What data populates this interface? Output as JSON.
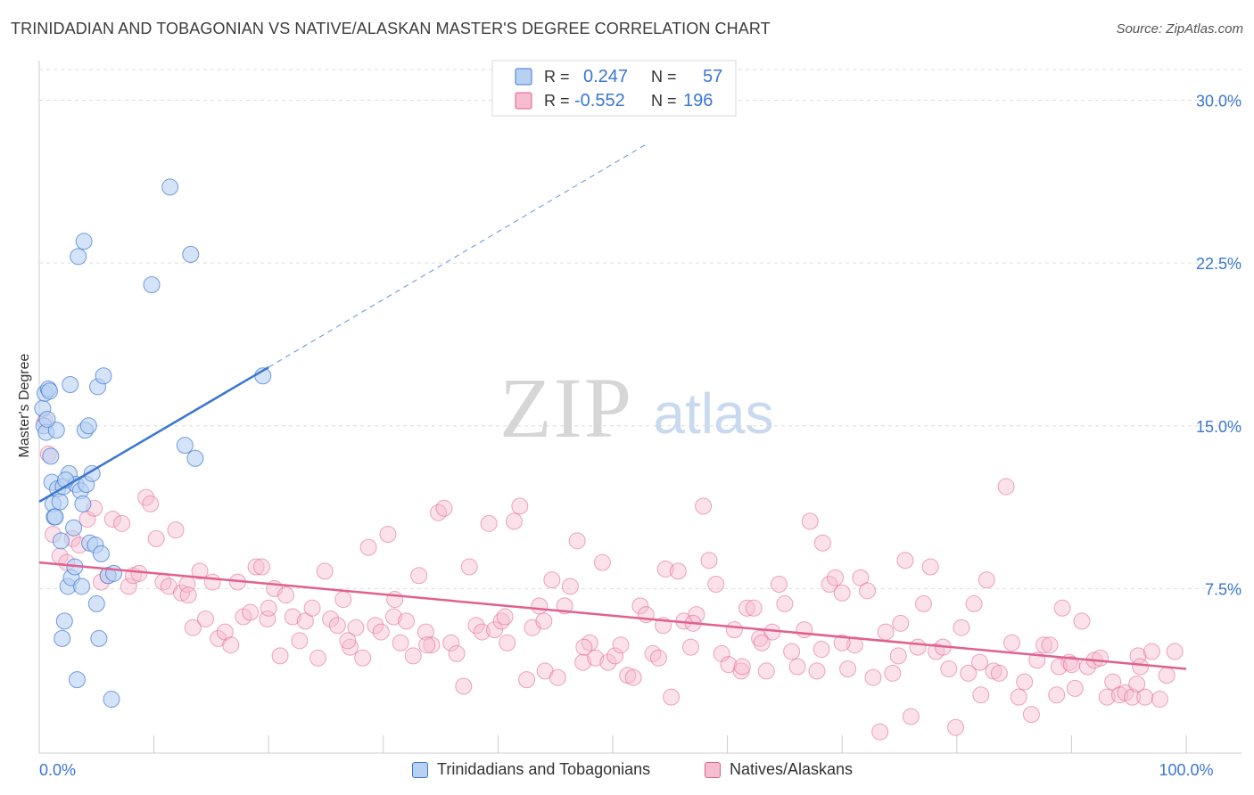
{
  "title": "TRINIDADIAN AND TOBAGONIAN VS NATIVE/ALASKAN MASTER'S DEGREE CORRELATION CHART",
  "source": "Source: ZipAtlas.com",
  "watermark": {
    "zip": "ZIP",
    "atlas": "atlas"
  },
  "colors": {
    "blue": "#3a76d0",
    "blue_fill": "#b8d1f3",
    "pink": "#e0608f",
    "pink_fill": "#f6bccf",
    "tick_label": "#3a76d0",
    "grid": "#dddddd"
  },
  "legend_top": {
    "rows": [
      {
        "r_label": "R =",
        "r_value": "0.247",
        "n_label": "N =",
        "n_value": "57"
      },
      {
        "r_label": "R =",
        "r_value": "-0.552",
        "n_label": "N =",
        "n_value": "196"
      }
    ]
  },
  "legend_bottom": {
    "items": [
      "Trinidadians and Tobagonians",
      "Natives/Alaskans"
    ]
  },
  "chart_data": {
    "type": "scatter",
    "xlabel": "",
    "ylabel": "Master's Degree",
    "xlim": [
      0,
      100
    ],
    "ylim": [
      0,
      30
    ],
    "x_tick_labels": [
      {
        "value": 0,
        "label": "0.0%"
      },
      {
        "value": 100,
        "label": "100.0%"
      }
    ],
    "y_tick_labels": [
      {
        "value": 7.5,
        "label": "7.5%"
      },
      {
        "value": 15,
        "label": "15.0%"
      },
      {
        "value": 22.5,
        "label": "22.5%"
      },
      {
        "value": 30,
        "label": "30.0%"
      }
    ],
    "grid": true,
    "legend": "top-center",
    "series": [
      {
        "name": "Trinidadians and Tobagonians",
        "color": "#3a76d0",
        "trend": {
          "x": [
            0,
            20
          ],
          "y": [
            11.5,
            17.7
          ],
          "dashed_to": [
            53,
            28
          ]
        },
        "points": [
          [
            0.3,
            15.8
          ],
          [
            0.4,
            15.0
          ],
          [
            0.5,
            16.5
          ],
          [
            0.6,
            14.7
          ],
          [
            0.8,
            16.7
          ],
          [
            0.9,
            16.6
          ],
          [
            1.0,
            13.6
          ],
          [
            1.1,
            12.4
          ],
          [
            1.2,
            11.4
          ],
          [
            1.3,
            10.8
          ],
          [
            1.4,
            10.8
          ],
          [
            1.6,
            12.1
          ],
          [
            1.8,
            11.5
          ],
          [
            1.9,
            9.7
          ],
          [
            2.1,
            12.2
          ],
          [
            2.2,
            6.0
          ],
          [
            2.0,
            5.2
          ],
          [
            2.5,
            7.6
          ],
          [
            2.6,
            12.8
          ],
          [
            2.7,
            16.9
          ],
          [
            2.8,
            8.0
          ],
          [
            3.0,
            10.3
          ],
          [
            3.1,
            8.5
          ],
          [
            3.2,
            12.3
          ],
          [
            3.3,
            3.3
          ],
          [
            3.4,
            22.8
          ],
          [
            3.6,
            12.0
          ],
          [
            3.7,
            7.6
          ],
          [
            3.8,
            11.4
          ],
          [
            3.9,
            23.5
          ],
          [
            4.0,
            14.8
          ],
          [
            4.1,
            12.3
          ],
          [
            4.3,
            15.0
          ],
          [
            4.4,
            9.6
          ],
          [
            4.6,
            12.8
          ],
          [
            4.9,
            9.5
          ],
          [
            5.0,
            6.8
          ],
          [
            5.1,
            16.8
          ],
          [
            5.2,
            5.2
          ],
          [
            5.4,
            9.1
          ],
          [
            5.6,
            17.3
          ],
          [
            6.0,
            8.1
          ],
          [
            6.3,
            2.4
          ],
          [
            6.5,
            8.2
          ],
          [
            9.8,
            21.5
          ],
          [
            11.4,
            26.0
          ],
          [
            12.7,
            14.1
          ],
          [
            13.2,
            22.9
          ],
          [
            13.6,
            13.5
          ],
          [
            19.5,
            17.3
          ],
          [
            1.5,
            14.8
          ],
          [
            2.3,
            12.5
          ],
          [
            0.7,
            15.3
          ]
        ]
      },
      {
        "name": "Natives/Alaskans",
        "color": "#e0608f",
        "trend": {
          "x": [
            0,
            100
          ],
          "y": [
            8.7,
            3.8
          ]
        },
        "points": [
          [
            0.5,
            15.2
          ],
          [
            0.8,
            13.7
          ],
          [
            1.2,
            10.0
          ],
          [
            1.8,
            9.0
          ],
          [
            2.4,
            8.7
          ],
          [
            2.9,
            9.8
          ],
          [
            3.5,
            9.5
          ],
          [
            4.2,
            10.7
          ],
          [
            4.8,
            11.2
          ],
          [
            5.4,
            7.8
          ],
          [
            6.0,
            8.1
          ],
          [
            6.4,
            10.7
          ],
          [
            7.2,
            10.5
          ],
          [
            7.8,
            7.6
          ],
          [
            8.2,
            8.1
          ],
          [
            8.7,
            8.2
          ],
          [
            9.3,
            11.7
          ],
          [
            9.7,
            11.4
          ],
          [
            10.2,
            9.8
          ],
          [
            10.8,
            7.8
          ],
          [
            11.3,
            7.6
          ],
          [
            11.9,
            10.2
          ],
          [
            12.4,
            7.3
          ],
          [
            12.9,
            7.7
          ],
          [
            13.4,
            5.7
          ],
          [
            14.0,
            8.3
          ],
          [
            14.5,
            6.1
          ],
          [
            15.1,
            7.8
          ],
          [
            15.6,
            5.2
          ],
          [
            16.2,
            5.5
          ],
          [
            16.7,
            4.9
          ],
          [
            17.3,
            7.8
          ],
          [
            17.8,
            6.2
          ],
          [
            18.4,
            6.4
          ],
          [
            18.9,
            8.5
          ],
          [
            19.4,
            8.5
          ],
          [
            19.9,
            6.1
          ],
          [
            20.5,
            7.5
          ],
          [
            21.0,
            4.4
          ],
          [
            21.5,
            7.2
          ],
          [
            22.1,
            6.2
          ],
          [
            22.7,
            5.1
          ],
          [
            23.2,
            6.0
          ],
          [
            23.8,
            6.6
          ],
          [
            24.3,
            4.3
          ],
          [
            24.9,
            8.3
          ],
          [
            25.4,
            6.1
          ],
          [
            26.0,
            5.8
          ],
          [
            26.5,
            7.0
          ],
          [
            27.1,
            4.8
          ],
          [
            27.6,
            5.7
          ],
          [
            28.2,
            4.3
          ],
          [
            28.7,
            9.4
          ],
          [
            29.3,
            5.8
          ],
          [
            29.8,
            5.5
          ],
          [
            30.4,
            10.0
          ],
          [
            30.9,
            6.2
          ],
          [
            31.5,
            5.0
          ],
          [
            32.0,
            6.0
          ],
          [
            32.6,
            4.4
          ],
          [
            33.1,
            8.1
          ],
          [
            33.7,
            5.5
          ],
          [
            34.2,
            4.9
          ],
          [
            34.8,
            11.0
          ],
          [
            35.3,
            11.2
          ],
          [
            35.9,
            5.0
          ],
          [
            36.4,
            4.5
          ],
          [
            37.0,
            3.0
          ],
          [
            37.5,
            8.5
          ],
          [
            38.1,
            5.8
          ],
          [
            38.6,
            5.5
          ],
          [
            39.2,
            10.5
          ],
          [
            39.7,
            5.6
          ],
          [
            40.3,
            6.0
          ],
          [
            40.8,
            5.0
          ],
          [
            41.4,
            10.6
          ],
          [
            41.9,
            11.3
          ],
          [
            42.5,
            3.3
          ],
          [
            43.0,
            5.7
          ],
          [
            43.6,
            6.7
          ],
          [
            44.1,
            3.7
          ],
          [
            44.7,
            7.9
          ],
          [
            45.2,
            3.4
          ],
          [
            45.8,
            6.7
          ],
          [
            46.3,
            7.6
          ],
          [
            46.9,
            9.7
          ],
          [
            47.4,
            4.1
          ],
          [
            48.0,
            5.0
          ],
          [
            48.5,
            4.3
          ],
          [
            49.1,
            8.7
          ],
          [
            49.6,
            4.1
          ],
          [
            50.2,
            4.4
          ],
          [
            50.7,
            4.9
          ],
          [
            51.3,
            3.5
          ],
          [
            51.8,
            3.4
          ],
          [
            52.4,
            6.7
          ],
          [
            52.9,
            6.3
          ],
          [
            53.5,
            4.5
          ],
          [
            54.0,
            4.3
          ],
          [
            54.6,
            8.4
          ],
          [
            55.1,
            2.5
          ],
          [
            55.7,
            8.3
          ],
          [
            56.2,
            6.0
          ],
          [
            56.8,
            4.8
          ],
          [
            57.3,
            6.3
          ],
          [
            57.9,
            11.3
          ],
          [
            58.4,
            8.8
          ],
          [
            59.0,
            7.7
          ],
          [
            59.5,
            4.5
          ],
          [
            60.1,
            4.0
          ],
          [
            60.6,
            5.6
          ],
          [
            61.2,
            3.7
          ],
          [
            61.7,
            6.6
          ],
          [
            62.3,
            6.6
          ],
          [
            62.8,
            5.2
          ],
          [
            63.4,
            3.7
          ],
          [
            63.9,
            5.5
          ],
          [
            64.5,
            7.7
          ],
          [
            65.0,
            6.8
          ],
          [
            65.6,
            4.6
          ],
          [
            66.1,
            3.9
          ],
          [
            66.7,
            5.6
          ],
          [
            67.2,
            10.6
          ],
          [
            67.8,
            3.7
          ],
          [
            68.3,
            9.6
          ],
          [
            68.9,
            7.7
          ],
          [
            69.4,
            8.0
          ],
          [
            70.0,
            7.3
          ],
          [
            70.5,
            3.8
          ],
          [
            71.1,
            4.9
          ],
          [
            71.6,
            8.0
          ],
          [
            72.2,
            7.4
          ],
          [
            72.7,
            3.4
          ],
          [
            73.3,
            0.9
          ],
          [
            73.8,
            5.5
          ],
          [
            74.4,
            3.6
          ],
          [
            74.9,
            4.4
          ],
          [
            75.5,
            8.8
          ],
          [
            76.0,
            1.6
          ],
          [
            76.6,
            4.8
          ],
          [
            77.1,
            6.8
          ],
          [
            77.7,
            8.5
          ],
          [
            78.2,
            4.6
          ],
          [
            78.8,
            4.8
          ],
          [
            79.3,
            3.8
          ],
          [
            79.9,
            1.1
          ],
          [
            80.4,
            5.7
          ],
          [
            81.0,
            3.6
          ],
          [
            81.5,
            6.8
          ],
          [
            82.1,
            2.6
          ],
          [
            82.6,
            7.9
          ],
          [
            83.2,
            3.7
          ],
          [
            83.7,
            3.6
          ],
          [
            84.3,
            12.2
          ],
          [
            84.8,
            5.0
          ],
          [
            85.4,
            2.5
          ],
          [
            85.9,
            3.2
          ],
          [
            86.5,
            1.7
          ],
          [
            87.0,
            4.2
          ],
          [
            87.6,
            4.9
          ],
          [
            88.1,
            4.9
          ],
          [
            88.7,
            2.6
          ],
          [
            89.2,
            6.6
          ],
          [
            89.8,
            4.1
          ],
          [
            90.3,
            2.9
          ],
          [
            90.9,
            6.0
          ],
          [
            91.4,
            3.9
          ],
          [
            92.0,
            4.2
          ],
          [
            92.5,
            4.3
          ],
          [
            93.1,
            2.5
          ],
          [
            93.6,
            3.2
          ],
          [
            94.2,
            2.6
          ],
          [
            94.7,
            2.7
          ],
          [
            95.3,
            2.5
          ],
          [
            95.8,
            4.4
          ],
          [
            96.4,
            2.5
          ],
          [
            97.0,
            4.6
          ],
          [
            97.7,
            2.4
          ],
          [
            98.3,
            3.5
          ],
          [
            99.0,
            4.6
          ],
          [
            26.9,
            5.1
          ],
          [
            33.8,
            4.9
          ],
          [
            40.6,
            6.2
          ],
          [
            47.5,
            4.8
          ],
          [
            54.4,
            5.8
          ],
          [
            61.3,
            3.9
          ],
          [
            68.2,
            4.7
          ],
          [
            75.1,
            5.9
          ],
          [
            82.0,
            4.1
          ],
          [
            88.9,
            3.9
          ],
          [
            95.7,
            3.1
          ],
          [
            13.0,
            7.2
          ],
          [
            20.0,
            6.6
          ],
          [
            31.0,
            7.0
          ],
          [
            44.0,
            6.0
          ],
          [
            57.0,
            5.9
          ],
          [
            63.0,
            5.0
          ],
          [
            70.0,
            5.0
          ],
          [
            90.0,
            4.0
          ],
          [
            96.0,
            3.9
          ]
        ]
      }
    ]
  }
}
